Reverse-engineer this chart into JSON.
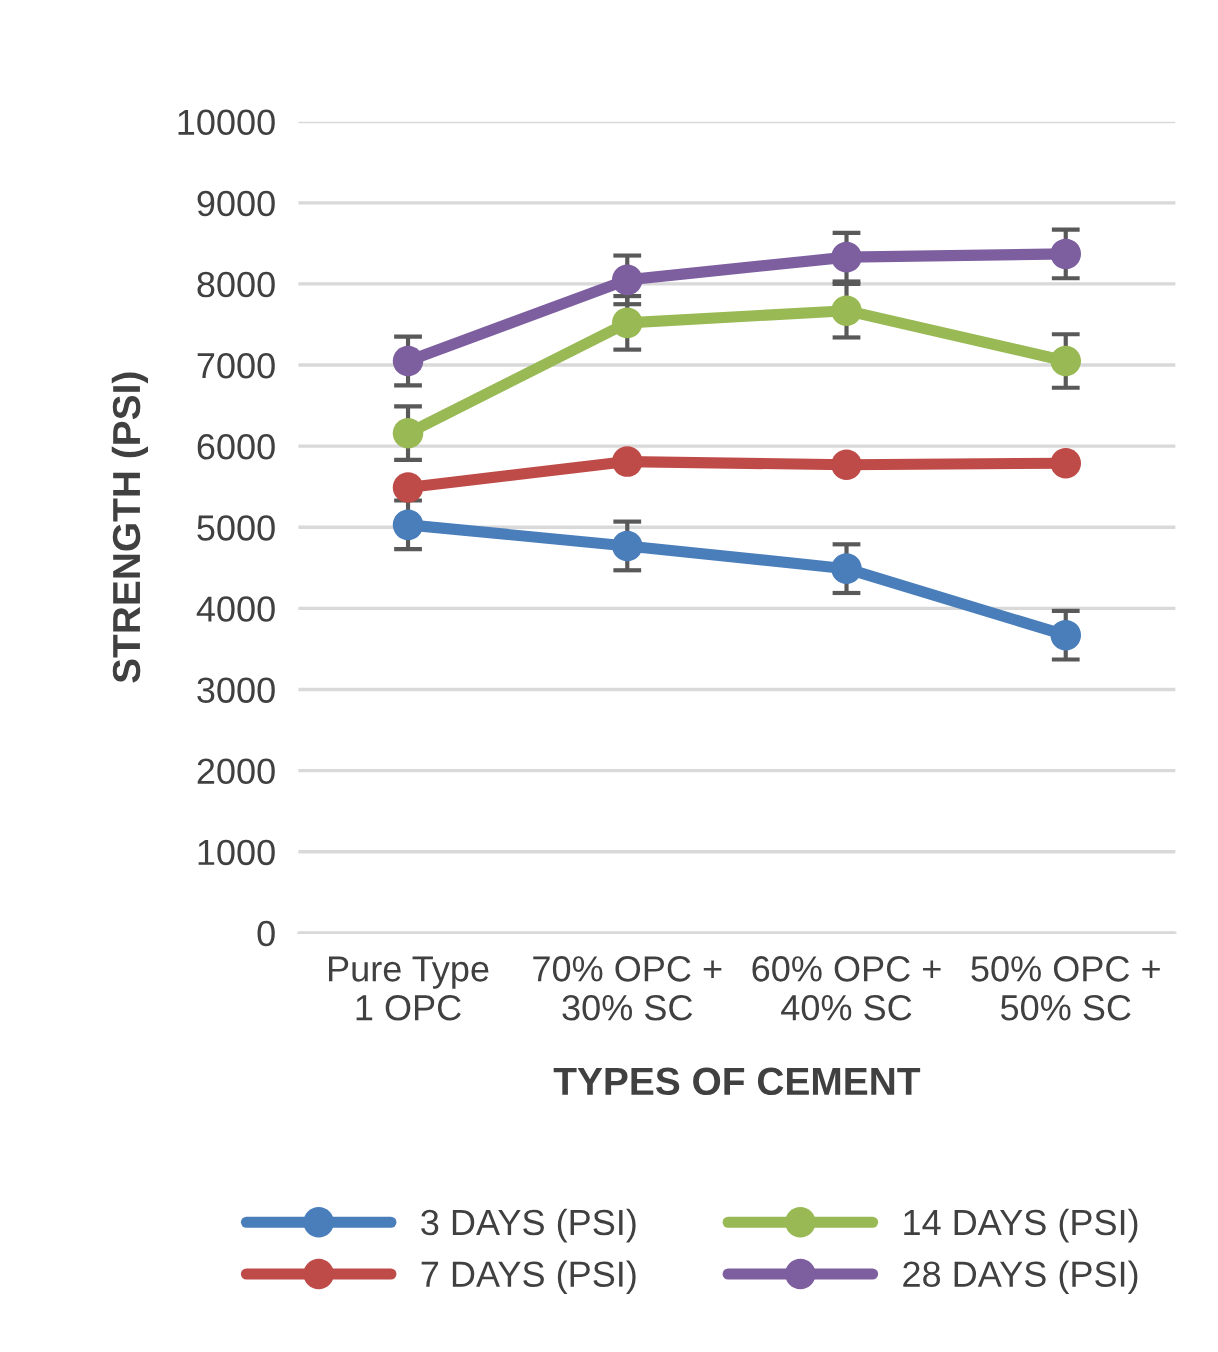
{
  "chart_data": {
    "type": "line",
    "xlabel": "TYPES OF CEMENT",
    "ylabel": "STRENGTH (PSI)",
    "categories": [
      "Pure Type\n1 OPC",
      "70% OPC +\n30% SC",
      "60% OPC +\n40% SC",
      "50% OPC +\n50% SC"
    ],
    "series": [
      {
        "name": "3 DAYS (PSI)",
        "color": "#4a7ebb",
        "values": [
          5030,
          4770,
          4490,
          3670
        ],
        "errors": [
          300,
          300,
          300,
          300
        ]
      },
      {
        "name": "7 DAYS (PSI)",
        "color": "#be4b48",
        "values": [
          5490,
          5810,
          5770,
          5790
        ]
      },
      {
        "name": "14 DAYS (PSI)",
        "color": "#98b954",
        "values": [
          6160,
          7520,
          7670,
          7050
        ],
        "errors": [
          330,
          330,
          330,
          330
        ]
      },
      {
        "name": "28 DAYS (PSI)",
        "color": "#7d5fa0",
        "values": [
          7050,
          8050,
          8330,
          8370
        ],
        "errors": [
          300,
          300,
          300,
          300
        ]
      }
    ],
    "ylim": [
      0,
      10000
    ],
    "yticks": [
      0,
      1000,
      2000,
      3000,
      4000,
      5000,
      6000,
      7000,
      8000,
      9000,
      10000
    ],
    "grid": "y",
    "legend": "bottom",
    "marker": "circle",
    "line_style": "solid"
  }
}
